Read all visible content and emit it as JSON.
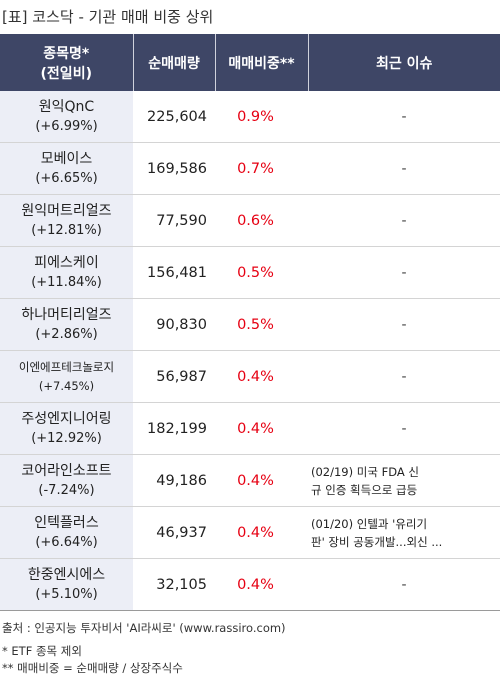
{
  "title": "[표] 코스닥 - 기관 매매 비중 상위",
  "headers": {
    "name_line1": "종목명*",
    "name_line2": "(전일비)",
    "volume": "순매매량",
    "ratio": "매매비중**",
    "issue": "최근 이슈"
  },
  "rows": [
    {
      "name": "원익QnC",
      "change": "(+6.99%)",
      "volume": "225,604",
      "ratio": "0.9%",
      "issue": "-"
    },
    {
      "name": "모베이스",
      "change": "(+6.65%)",
      "volume": "169,586",
      "ratio": "0.7%",
      "issue": "-"
    },
    {
      "name": "원익머트리얼즈",
      "change": "(+12.81%)",
      "volume": "77,590",
      "ratio": "0.6%",
      "issue": "-"
    },
    {
      "name": "피에스케이",
      "change": "(+11.84%)",
      "volume": "156,481",
      "ratio": "0.5%",
      "issue": "-"
    },
    {
      "name": "하나머티리얼즈",
      "change": "(+2.86%)",
      "volume": "90,830",
      "ratio": "0.5%",
      "issue": "-"
    },
    {
      "name": "이엔에프테크놀로지",
      "change": "(+7.45%)",
      "volume": "56,987",
      "ratio": "0.4%",
      "issue": "-"
    },
    {
      "name": "주성엔지니어링",
      "change": "(+12.92%)",
      "volume": "182,199",
      "ratio": "0.4%",
      "issue": "-"
    },
    {
      "name": "코어라인소프트",
      "change": "(-7.24%)",
      "volume": "49,186",
      "ratio": "0.4%",
      "issue_line1": "(02/19) 미국 FDA 신",
      "issue_line2": "규 인증 획득으로 급등"
    },
    {
      "name": "인텍플러스",
      "change": "(+6.64%)",
      "volume": "46,937",
      "ratio": "0.4%",
      "issue_line1": "(01/20) 인텔과 '유리기",
      "issue_line2": "판' 장비 공동개발...외신 ..."
    },
    {
      "name": "한중엔시에스",
      "change": "(+5.10%)",
      "volume": "32,105",
      "ratio": "0.4%",
      "issue": "-"
    }
  ],
  "source": "출처 : 인공지능 투자비서 'AI라씨로' (www.rassiro.com)",
  "note1": "* ETF 종목 제외",
  "note2": "** 매매비중 = 순매매량 / 상장주식수"
}
